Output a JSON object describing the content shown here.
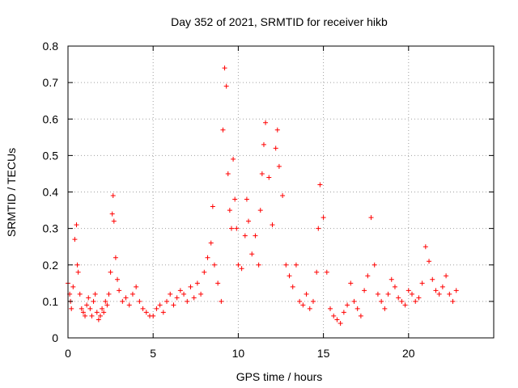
{
  "chart_data": {
    "type": "scatter",
    "title": "Day 352 of 2021, SRMTID for receiver hikb",
    "xlabel": "GPS time / hours",
    "ylabel": "SRMTID / TECUs",
    "xlim": [
      0,
      25
    ],
    "ylim": [
      0,
      0.8
    ],
    "xticks": [
      0,
      5,
      10,
      15,
      20
    ],
    "xtick_labels": [
      "0",
      "5",
      "10",
      "15",
      "20"
    ],
    "yticks": [
      0,
      0.1,
      0.2,
      0.3,
      0.4,
      0.5,
      0.6,
      0.7,
      0.8
    ],
    "ytick_labels": [
      "0",
      "0.1",
      "0.2",
      "0.3",
      "0.4",
      "0.5",
      "0.6",
      "0.7",
      "0.8"
    ],
    "grid": true,
    "marker": "plus",
    "series": [
      {
        "name": "SRMTID hikb",
        "color": "#ff0000",
        "x": [
          0.0,
          0.1,
          0.15,
          0.2,
          0.3,
          0.4,
          0.5,
          0.55,
          0.6,
          0.7,
          0.8,
          0.9,
          1.0,
          1.1,
          1.2,
          1.3,
          1.4,
          1.5,
          1.6,
          1.7,
          1.8,
          1.9,
          2.0,
          2.1,
          2.2,
          2.3,
          2.4,
          2.5,
          2.6,
          2.65,
          2.7,
          2.8,
          2.9,
          3.0,
          3.2,
          3.4,
          3.6,
          3.8,
          4.0,
          4.2,
          4.4,
          4.6,
          4.8,
          5.0,
          5.2,
          5.4,
          5.6,
          5.8,
          6.0,
          6.2,
          6.4,
          6.6,
          6.8,
          7.0,
          7.2,
          7.4,
          7.6,
          7.8,
          8.0,
          8.2,
          8.4,
          8.5,
          8.6,
          8.8,
          9.0,
          9.1,
          9.2,
          9.3,
          9.4,
          9.5,
          9.6,
          9.7,
          9.8,
          9.9,
          10.0,
          10.2,
          10.4,
          10.5,
          10.6,
          10.8,
          11.0,
          11.2,
          11.3,
          11.4,
          11.5,
          11.6,
          11.8,
          12.0,
          12.2,
          12.3,
          12.4,
          12.6,
          12.8,
          13.0,
          13.2,
          13.4,
          13.6,
          13.8,
          14.0,
          14.2,
          14.4,
          14.6,
          14.7,
          14.8,
          15.0,
          15.2,
          15.4,
          15.6,
          15.8,
          16.0,
          16.2,
          16.4,
          16.6,
          16.8,
          17.0,
          17.2,
          17.4,
          17.6,
          17.8,
          18.0,
          18.2,
          18.4,
          18.6,
          18.8,
          19.0,
          19.2,
          19.4,
          19.6,
          19.8,
          20.0,
          20.2,
          20.4,
          20.6,
          20.8,
          21.0,
          21.2,
          21.4,
          21.6,
          21.8,
          22.0,
          22.2,
          22.4,
          22.6,
          22.8
        ],
        "y": [
          0.15,
          0.12,
          0.1,
          0.08,
          0.14,
          0.27,
          0.31,
          0.2,
          0.18,
          0.12,
          0.08,
          0.07,
          0.06,
          0.09,
          0.11,
          0.08,
          0.06,
          0.1,
          0.12,
          0.07,
          0.05,
          0.06,
          0.08,
          0.07,
          0.1,
          0.09,
          0.12,
          0.18,
          0.34,
          0.39,
          0.32,
          0.22,
          0.16,
          0.13,
          0.1,
          0.11,
          0.09,
          0.12,
          0.14,
          0.1,
          0.08,
          0.07,
          0.06,
          0.06,
          0.08,
          0.09,
          0.07,
          0.1,
          0.12,
          0.09,
          0.11,
          0.13,
          0.12,
          0.1,
          0.14,
          0.11,
          0.15,
          0.12,
          0.18,
          0.22,
          0.26,
          0.36,
          0.2,
          0.15,
          0.1,
          0.57,
          0.74,
          0.69,
          0.45,
          0.35,
          0.3,
          0.49,
          0.38,
          0.3,
          0.2,
          0.19,
          0.28,
          0.38,
          0.32,
          0.23,
          0.28,
          0.2,
          0.35,
          0.45,
          0.53,
          0.59,
          0.44,
          0.31,
          0.52,
          0.57,
          0.47,
          0.39,
          0.2,
          0.17,
          0.14,
          0.2,
          0.1,
          0.09,
          0.12,
          0.08,
          0.1,
          0.18,
          0.3,
          0.42,
          0.33,
          0.18,
          0.08,
          0.06,
          0.05,
          0.04,
          0.07,
          0.09,
          0.15,
          0.1,
          0.08,
          0.06,
          0.13,
          0.17,
          0.33,
          0.2,
          0.12,
          0.1,
          0.08,
          0.12,
          0.16,
          0.14,
          0.11,
          0.1,
          0.09,
          0.13,
          0.12,
          0.1,
          0.11,
          0.15,
          0.25,
          0.21,
          0.16,
          0.13,
          0.12,
          0.14,
          0.17,
          0.12,
          0.1,
          0.13
        ]
      }
    ]
  }
}
